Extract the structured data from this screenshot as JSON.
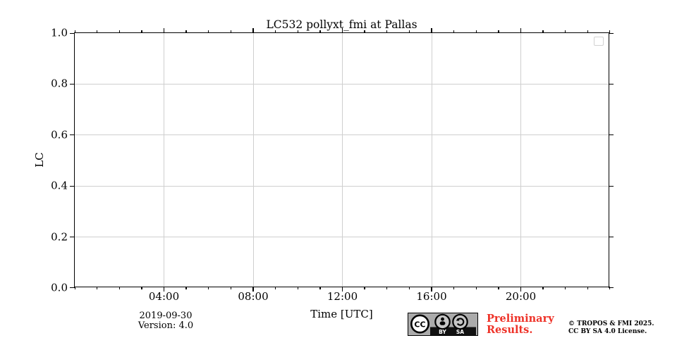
{
  "chart_data": {
    "type": "line",
    "title": "LC532 pollyxt_fmi at Pallas",
    "xlabel": "Time [UTC]",
    "ylabel": "LC",
    "x_axis": {
      "min_hours": 0,
      "max_hours": 24,
      "major_tick_values": [
        4,
        8,
        12,
        16,
        20
      ],
      "tick_labels": [
        "04:00",
        "08:00",
        "12:00",
        "16:00",
        "20:00"
      ],
      "minor_tick_hours": 1
    },
    "y_axis": {
      "min": 0.0,
      "max": 1.0,
      "major_tick_values": [
        0.0,
        0.2,
        0.4,
        0.6,
        0.8,
        1.0
      ],
      "tick_labels": [
        "0.0",
        "0.2",
        "0.4",
        "0.6",
        "0.8",
        "1.0"
      ]
    },
    "series": [],
    "grid": true,
    "legend": {
      "visible": true,
      "entries": []
    }
  },
  "annotations": {
    "date": "2019-09-30",
    "version": "Version: 4.0",
    "preliminary_text": "Preliminary Results.",
    "preliminary_color": "#ee3228",
    "copyright_lines": [
      "© TROPOS & FMI 2025.",
      "CC BY SA 4.0 License."
    ],
    "license_badge": {
      "cc_label": "CC",
      "by_label": "BY",
      "sa_label": "SA"
    }
  }
}
